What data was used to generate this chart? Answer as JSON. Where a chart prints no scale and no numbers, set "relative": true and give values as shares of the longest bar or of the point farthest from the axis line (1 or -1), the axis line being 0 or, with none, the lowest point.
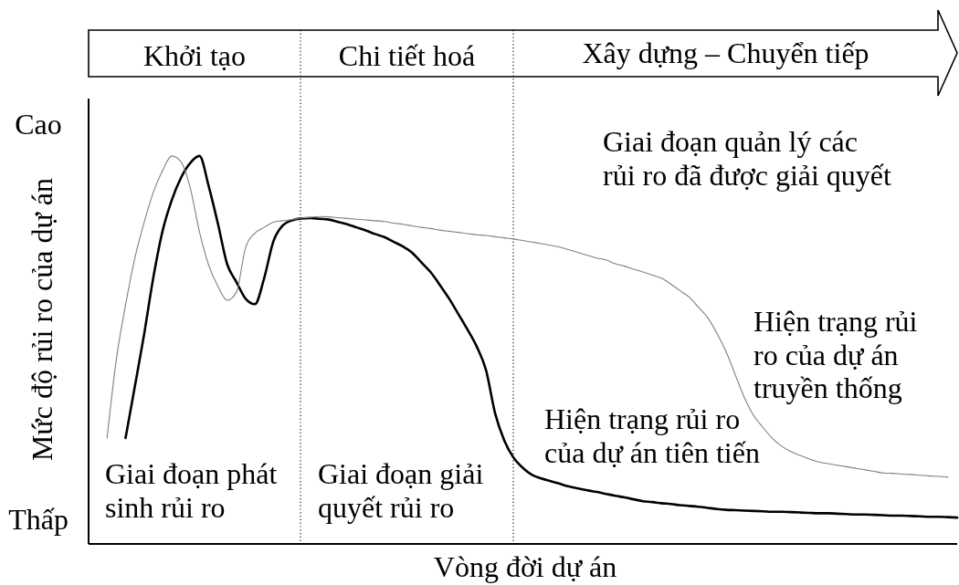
{
  "chart_data": {
    "type": "line",
    "relative": true,
    "line_style": "solid",
    "xlabel": "Vòng đời dự án",
    "ylabel": "Mức độ rủi ro của dự án",
    "categories": [
      null,
      null,
      null,
      null,
      null,
      null,
      null,
      null,
      null,
      null,
      null,
      null,
      null,
      null,
      null,
      null,
      null,
      null,
      null,
      null,
      null,
      null,
      null,
      null,
      null,
      null,
      null,
      null,
      null,
      null,
      null,
      null,
      null,
      null,
      null,
      null,
      null,
      null,
      null,
      null,
      null,
      null,
      null,
      null,
      null,
      null,
      null,
      null,
      null,
      null,
      null,
      null,
      null,
      null,
      null,
      null,
      null,
      null,
      null,
      null,
      null,
      null,
      null,
      null,
      null,
      null,
      null,
      null,
      null,
      null,
      null,
      null,
      null,
      null,
      null,
      null,
      null,
      null,
      null,
      null,
      null,
      null,
      null,
      null,
      null,
      null,
      null,
      null,
      null,
      null,
      null,
      null,
      null,
      null,
      null
    ],
    "series": [
      {
        "name": "Hiện trạng rủi ro của dự án tiên tiến",
        "color": "#000000",
        "values": [
          null,
          null,
          null,
          null,
          0.273,
          0.405,
          0.539,
          0.686,
          0.806,
          0.886,
          0.944,
          0.982,
          1.0,
          0.922,
          0.825,
          0.721,
          0.675,
          0.632,
          0.618,
          0.685,
          0.78,
          0.821,
          0.834,
          0.839,
          0.84,
          0.838,
          0.836,
          0.83,
          0.824,
          0.816,
          0.808,
          0.799,
          0.791,
          0.779,
          0.767,
          0.751,
          0.726,
          0.701,
          0.668,
          0.633,
          0.593,
          0.553,
          0.509,
          0.449,
          0.336,
          0.266,
          0.222,
          0.196,
          0.178,
          0.169,
          0.162,
          0.155,
          0.148,
          0.143,
          0.138,
          0.134,
          0.129,
          0.124,
          0.12,
          0.115,
          0.11,
          0.108,
          0.105,
          0.103,
          0.1,
          0.098,
          0.096,
          0.093,
          0.09,
          0.088,
          0.087,
          0.086,
          0.085,
          0.084,
          0.083,
          0.083,
          0.082,
          0.081,
          0.08,
          0.079,
          0.079,
          0.078,
          0.077,
          0.076,
          0.076,
          0.075,
          0.074,
          0.073,
          0.073,
          0.072,
          0.071,
          0.07,
          0.07,
          0.069,
          0.068
        ]
      },
      {
        "name": "Hiện trạng rủi ro của dự án truyền thống",
        "color": "#808080",
        "values": [
          null,
          null,
          0.273,
          0.475,
          0.616,
          0.736,
          0.828,
          0.906,
          0.962,
          1.0,
          0.985,
          0.918,
          0.804,
          0.718,
          0.664,
          0.628,
          0.649,
          0.765,
          0.801,
          0.816,
          0.829,
          0.833,
          0.836,
          0.84,
          0.842,
          0.844,
          0.843,
          0.841,
          0.839,
          0.837,
          0.835,
          0.833,
          0.831,
          0.827,
          0.824,
          0.82,
          0.816,
          0.813,
          0.809,
          0.806,
          0.803,
          0.8,
          0.797,
          0.795,
          0.792,
          0.789,
          0.786,
          0.782,
          0.778,
          0.774,
          0.77,
          0.765,
          0.758,
          0.751,
          0.744,
          0.737,
          0.732,
          0.722,
          0.716,
          0.708,
          0.701,
          0.693,
          0.685,
          0.67,
          0.653,
          0.636,
          0.61,
          0.583,
          0.543,
          0.495,
          0.435,
          0.376,
          0.33,
          0.3,
          0.272,
          0.252,
          0.238,
          0.228,
          0.219,
          0.211,
          0.207,
          0.203,
          0.199,
          0.195,
          0.191,
          0.187,
          0.183,
          0.182,
          0.18,
          0.179,
          0.177,
          0.175,
          0.174,
          0.172,
          null
        ]
      }
    ],
    "annotations": [
      "Khởi tạo",
      "Chi tiết hoá",
      "Xây dựng – Chuyển tiếp",
      "Cao",
      "Thấp",
      "Giai đoạn phát sinh rủi ro",
      "Giai đoạn giải quyết rủi ro",
      "Giai đoạn quản lý các rủi ro đã được giải quyết"
    ]
  }
}
